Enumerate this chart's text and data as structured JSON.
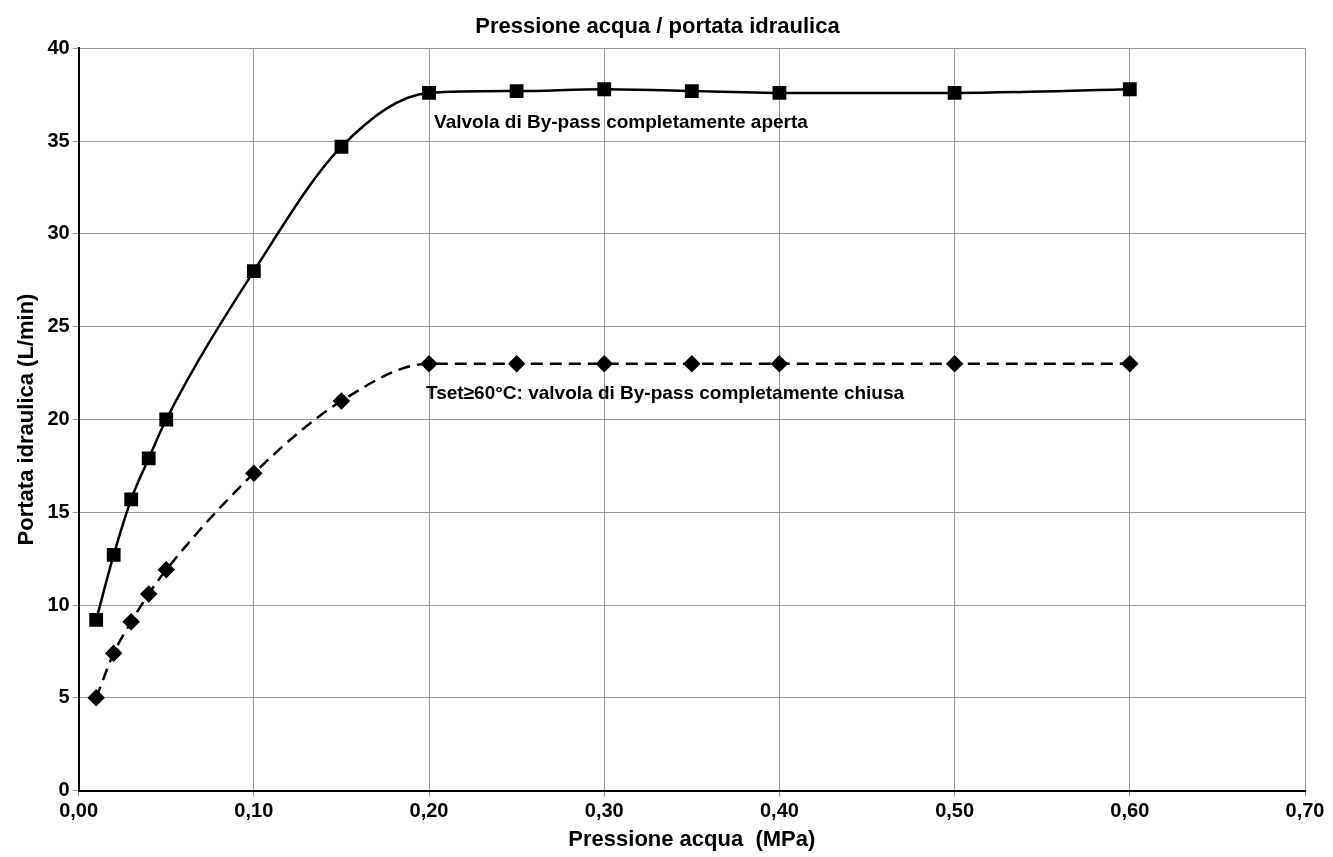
{
  "chart_data": {
    "type": "line",
    "title": "Pressione acqua / portata idraulica",
    "xlabel": "Pressione acqua  (MPa)",
    "ylabel": "Portata idraulica (L/min)",
    "x": [
      0.01,
      0.02,
      0.03,
      0.04,
      0.05,
      0.1,
      0.15,
      0.2,
      0.25,
      0.3,
      0.35,
      0.4,
      0.5,
      0.6
    ],
    "series": [
      {
        "color": "#000000",
        "marker": "square",
        "line_style": "solid",
        "values": [
          9.2,
          12.7,
          15.7,
          17.9,
          20.0,
          28.0,
          34.7,
          37.6,
          37.7,
          37.8,
          37.7,
          37.6,
          37.6,
          37.8
        ]
      },
      {
        "color": "#000000",
        "marker": "diamond",
        "line_style": "dashed",
        "values": [
          5.0,
          7.4,
          9.1,
          10.6,
          11.9,
          17.1,
          21.0,
          23.0,
          23.0,
          23.0,
          23.0,
          23.0,
          23.0,
          23.0
        ]
      }
    ],
    "xlim": [
      0,
      0.7
    ],
    "xticks": [
      {
        "value": 0,
        "label": "0,00"
      },
      {
        "value": 0.1,
        "label": "0,10"
      },
      {
        "value": 0.2,
        "label": "0,20"
      },
      {
        "value": 0.3,
        "label": "0,30"
      },
      {
        "value": 0.4,
        "label": "0,40"
      },
      {
        "value": 0.5,
        "label": "0,50"
      },
      {
        "value": 0.6,
        "label": "0,60"
      },
      {
        "value": 0.7,
        "label": "0,70"
      }
    ],
    "ylim": [
      0,
      40
    ],
    "yticks": [
      0,
      5,
      10,
      15,
      20,
      25,
      30,
      35,
      40
    ],
    "grid": true,
    "legend": false,
    "annotations": [
      "Valvola di By-pass completamente aperta",
      "Tset≥60°C: valvola di By-pass completamente chiusa"
    ]
  }
}
